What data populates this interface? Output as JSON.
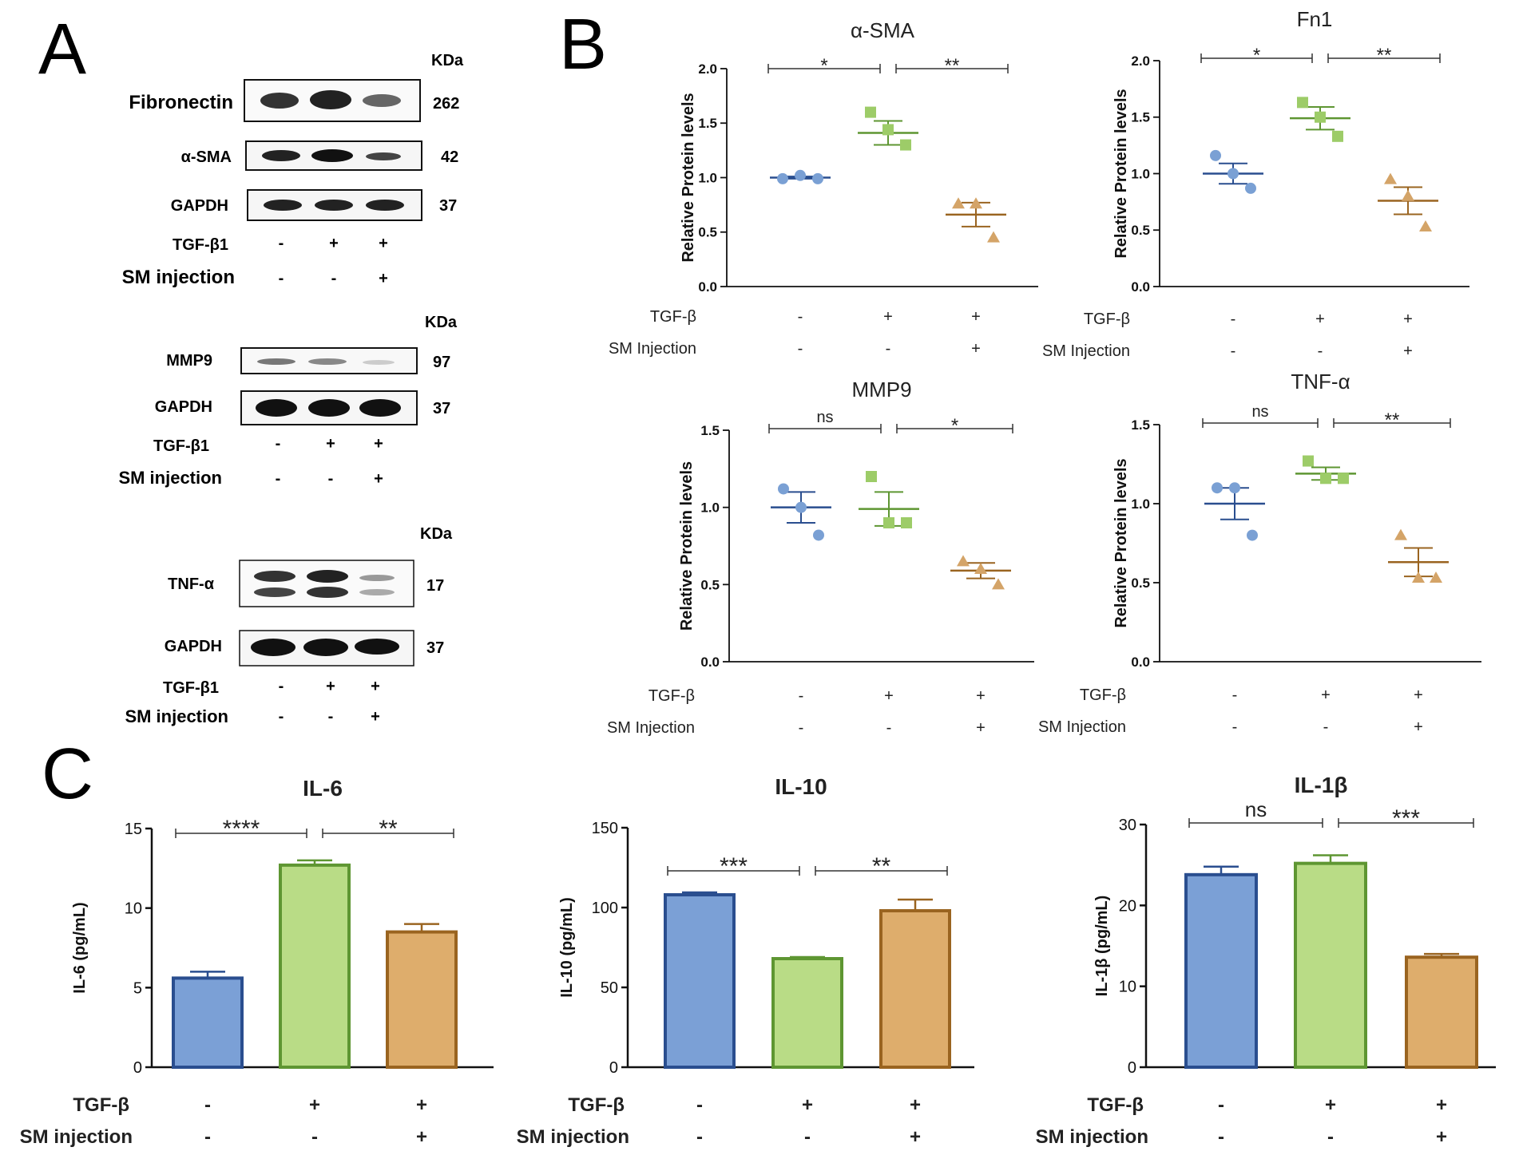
{
  "panel_labels": {
    "a": "A",
    "b": "B",
    "c": "C"
  },
  "colors": {
    "ctrl_fill": "#7BA0D6",
    "ctrl_stroke": "#2A4E8F",
    "tgf_fill": "#B9DC86",
    "tgf_stroke": "#5E9632",
    "sm_fill": "#DEAD6C",
    "sm_stroke": "#9A6420",
    "ctrl_point": "#7AA0D4",
    "tgf_point": "#9DCC68",
    "sm_point": "#D4A468",
    "band": "#1a1a1a"
  },
  "western_blots": [
    {
      "kda_label": "KDa",
      "blots": [
        {
          "name": "Fibronectin",
          "kda": "262"
        },
        {
          "name": "α-SMA",
          "kda": "42"
        },
        {
          "name": "GAPDH",
          "kda": "37"
        }
      ],
      "conditions": [
        {
          "label": "TGF-β1",
          "values": [
            "-",
            "+",
            "+"
          ]
        },
        {
          "label": "SM injection",
          "values": [
            "-",
            "-",
            "+"
          ]
        }
      ]
    },
    {
      "kda_label": "KDa",
      "blots": [
        {
          "name": "MMP9",
          "kda": "97"
        },
        {
          "name": "GAPDH",
          "kda": "37"
        }
      ],
      "conditions": [
        {
          "label": "TGF-β1",
          "values": [
            "-",
            "+",
            "+"
          ]
        },
        {
          "label": "SM injection",
          "values": [
            "-",
            "-",
            "+"
          ]
        }
      ]
    },
    {
      "kda_label": "KDa",
      "blots": [
        {
          "name": "TNF-α",
          "kda": "17"
        },
        {
          "name": "GAPDH",
          "kda": "37"
        }
      ],
      "conditions": [
        {
          "label": "TGF-β1",
          "values": [
            "-",
            "+",
            "+"
          ]
        },
        {
          "label": "SM injection",
          "values": [
            "-",
            "-",
            "+"
          ]
        }
      ]
    }
  ],
  "chart_data": [
    {
      "type": "scatter",
      "panel": "B",
      "title": "α-SMA",
      "ylabel": "Relative Protein levels",
      "ylim": [
        0,
        2.0
      ],
      "yticks": [
        "0.0",
        "0.5",
        "1.0",
        "1.5",
        "2.0"
      ],
      "groups": [
        {
          "mean": 1.0,
          "sem": 0.01,
          "points": [
            0.99,
            1.02,
            0.99
          ]
        },
        {
          "mean": 1.41,
          "sem": 0.11,
          "points": [
            1.6,
            1.44,
            1.3
          ]
        },
        {
          "mean": 0.66,
          "sem": 0.11,
          "points": [
            0.76,
            0.76,
            0.45
          ]
        }
      ],
      "significance": [
        {
          "from": 0,
          "to": 1,
          "label": "*"
        },
        {
          "from": 1,
          "to": 2,
          "label": "**"
        }
      ],
      "conditions": [
        {
          "label": "TGF-β",
          "values": [
            "-",
            "+",
            "+"
          ]
        },
        {
          "label": "SM Injection",
          "values": [
            "-",
            "-",
            "+"
          ]
        }
      ]
    },
    {
      "type": "scatter",
      "panel": "B",
      "title": "Fn1",
      "ylabel": "Relative Protein levels",
      "ylim": [
        0,
        2.0
      ],
      "yticks": [
        "0.0",
        "0.5",
        "1.0",
        "1.5",
        "2.0"
      ],
      "groups": [
        {
          "mean": 1.0,
          "sem": 0.09,
          "points": [
            1.16,
            1.0,
            0.87
          ]
        },
        {
          "mean": 1.49,
          "sem": 0.1,
          "points": [
            1.63,
            1.5,
            1.33
          ]
        },
        {
          "mean": 0.76,
          "sem": 0.12,
          "points": [
            0.95,
            0.8,
            0.53
          ]
        }
      ],
      "significance": [
        {
          "from": 0,
          "to": 1,
          "label": "*"
        },
        {
          "from": 1,
          "to": 2,
          "label": "**"
        }
      ],
      "conditions": [
        {
          "label": "TGF-β",
          "values": [
            "-",
            "+",
            "+"
          ]
        },
        {
          "label": "SM Injection",
          "values": [
            "-",
            "-",
            "+"
          ]
        }
      ]
    },
    {
      "type": "scatter",
      "panel": "B",
      "title": "MMP9",
      "ylabel": "Relative Protein levels",
      "ylim": [
        0,
        1.5
      ],
      "yticks": [
        "0.0",
        "0.5",
        "1.0",
        "1.5"
      ],
      "groups": [
        {
          "mean": 1.0,
          "sem": 0.1,
          "points": [
            1.12,
            1.0,
            0.82
          ]
        },
        {
          "mean": 0.99,
          "sem": 0.11,
          "points": [
            1.2,
            0.9,
            0.9
          ]
        },
        {
          "mean": 0.59,
          "sem": 0.05,
          "points": [
            0.65,
            0.6,
            0.5
          ]
        }
      ],
      "significance": [
        {
          "from": 0,
          "to": 1,
          "label": "ns"
        },
        {
          "from": 1,
          "to": 2,
          "label": "*"
        }
      ],
      "conditions": [
        {
          "label": "TGF-β",
          "values": [
            "-",
            "+",
            "+"
          ]
        },
        {
          "label": "SM Injection",
          "values": [
            "-",
            "-",
            "+"
          ]
        }
      ]
    },
    {
      "type": "scatter",
      "panel": "B",
      "title": "TNF-α",
      "ylabel": "Relative Protein levels",
      "ylim": [
        0,
        1.5
      ],
      "yticks": [
        "0.0",
        "0.5",
        "1.0",
        "1.5"
      ],
      "groups": [
        {
          "mean": 1.0,
          "sem": 0.1,
          "points": [
            1.1,
            1.1,
            0.8
          ]
        },
        {
          "mean": 1.19,
          "sem": 0.04,
          "points": [
            1.27,
            1.16,
            1.16
          ]
        },
        {
          "mean": 0.63,
          "sem": 0.09,
          "points": [
            0.8,
            0.53,
            0.53
          ]
        }
      ],
      "significance": [
        {
          "from": 0,
          "to": 1,
          "label": "ns"
        },
        {
          "from": 1,
          "to": 2,
          "label": "**"
        }
      ],
      "conditions": [
        {
          "label": "TGF-β",
          "values": [
            "-",
            "+",
            "+"
          ]
        },
        {
          "label": "SM Injection",
          "values": [
            "-",
            "-",
            "+"
          ]
        }
      ]
    },
    {
      "type": "bar",
      "panel": "C",
      "title": "IL-6",
      "ylabel": "IL-6 (pg/mL)",
      "ylim": [
        0,
        15
      ],
      "yticks": [
        "0",
        "5",
        "10",
        "15"
      ],
      "values": [
        5.6,
        12.7,
        8.5
      ],
      "errors": [
        0.4,
        0.3,
        0.5
      ],
      "significance": [
        {
          "from": 0,
          "to": 1,
          "label": "****"
        },
        {
          "from": 1,
          "to": 2,
          "label": "**"
        }
      ],
      "conditions": [
        {
          "label": "TGF-β",
          "values": [
            "-",
            "+",
            "+"
          ]
        },
        {
          "label": "SM injection",
          "values": [
            "-",
            "-",
            "+"
          ]
        }
      ]
    },
    {
      "type": "bar",
      "panel": "C",
      "title": "IL-10",
      "ylabel": "IL-10 (pg/mL)",
      "ylim": [
        0,
        150
      ],
      "yticks": [
        "0",
        "50",
        "100",
        "150"
      ],
      "values": [
        108,
        68,
        98
      ],
      "errors": [
        1.5,
        1.0,
        7.0
      ],
      "significance": [
        {
          "from": 0,
          "to": 1,
          "label": "***"
        },
        {
          "from": 1,
          "to": 2,
          "label": "**"
        }
      ],
      "conditions": [
        {
          "label": "TGF-β",
          "values": [
            "-",
            "+",
            "+"
          ]
        },
        {
          "label": "SM injection",
          "values": [
            "-",
            "-",
            "+"
          ]
        }
      ]
    },
    {
      "type": "bar",
      "panel": "C",
      "title": "IL-1β",
      "ylabel": "IL-1β (pg/mL)",
      "ylim": [
        0,
        30
      ],
      "yticks": [
        "0",
        "10",
        "20",
        "30"
      ],
      "values": [
        23.8,
        25.2,
        13.6
      ],
      "errors": [
        1.0,
        1.0,
        0.4
      ],
      "significance": [
        {
          "from": 0,
          "to": 1,
          "label": "ns"
        },
        {
          "from": 1,
          "to": 2,
          "label": "***"
        }
      ],
      "conditions": [
        {
          "label": "TGF-β",
          "values": [
            "-",
            "+",
            "+"
          ]
        },
        {
          "label": "SM injection",
          "values": [
            "-",
            "-",
            "+"
          ]
        }
      ]
    }
  ]
}
